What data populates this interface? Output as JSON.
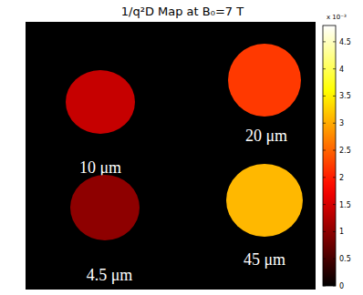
{
  "chart_data": {
    "type": "heatmap",
    "title": "1/q²D Map at B₀=7 T",
    "samples": [
      {
        "label": "10 μm",
        "value": 1.4
      },
      {
        "label": "20 μm",
        "value": 2.2
      },
      {
        "label": "4.5 μm",
        "value": 1.0
      },
      {
        "label": "45 μm",
        "value": 3.1
      }
    ],
    "colorbar_range": [
      0,
      4.8
    ],
    "colorbar_ticks": [
      0,
      0.5,
      1,
      1.5,
      2,
      2.5,
      3,
      3.5,
      4,
      4.5
    ],
    "colorbar_label": "x 10⁻³",
    "color": "hot"
  }
}
